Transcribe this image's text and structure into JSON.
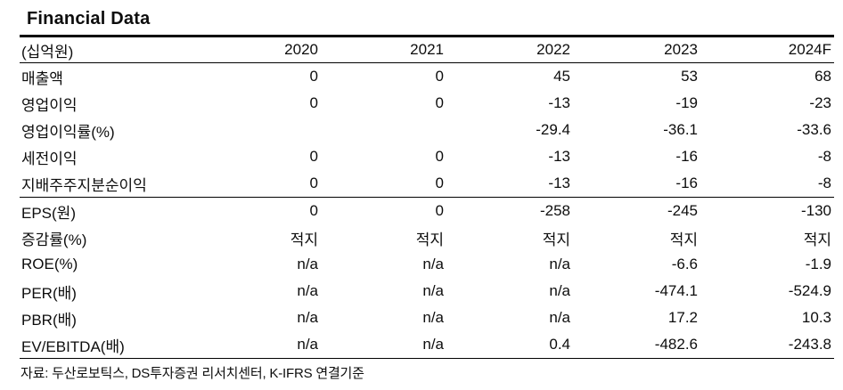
{
  "title": "Financial Data",
  "table": {
    "unit_label": "(십억원)",
    "columns": [
      "2020",
      "2021",
      "2022",
      "2023",
      "2024F"
    ],
    "sections": [
      {
        "rows": [
          {
            "label": "매출액",
            "values": [
              "0",
              "0",
              "45",
              "53",
              "68"
            ]
          },
          {
            "label": "영업이익",
            "values": [
              "0",
              "0",
              "-13",
              "-19",
              "-23"
            ]
          },
          {
            "label": "영업이익률(%)",
            "values": [
              "",
              "",
              "-29.4",
              "-36.1",
              "-33.6"
            ]
          },
          {
            "label": "세전이익",
            "values": [
              "0",
              "0",
              "-13",
              "-16",
              "-8"
            ]
          },
          {
            "label": "지배주주지분순이익",
            "values": [
              "0",
              "0",
              "-13",
              "-16",
              "-8"
            ]
          }
        ]
      },
      {
        "rows": [
          {
            "label": "EPS(원)",
            "values": [
              "0",
              "0",
              "-258",
              "-245",
              "-130"
            ]
          },
          {
            "label": "증감률(%)",
            "values": [
              "적지",
              "적지",
              "적지",
              "적지",
              "적지"
            ]
          },
          {
            "label": "ROE(%)",
            "values": [
              "n/a",
              "n/a",
              "n/a",
              "-6.6",
              "-1.9"
            ]
          },
          {
            "label": "PER(배)",
            "values": [
              "n/a",
              "n/a",
              "n/a",
              "-474.1",
              "-524.9"
            ]
          },
          {
            "label": "PBR(배)",
            "values": [
              "n/a",
              "n/a",
              "n/a",
              "17.2",
              "10.3"
            ]
          },
          {
            "label": "EV/EBITDA(배)",
            "values": [
              "n/a",
              "n/a",
              "0.4",
              "-482.6",
              "-243.8"
            ]
          }
        ]
      }
    ],
    "source_note": "자료: 두산로보틱스, DS투자증권 리서치센터, K-IFRS 연결기준"
  },
  "colors": {
    "background": "#ffffff",
    "text": "#0d0d0d",
    "rule": "#000000"
  }
}
